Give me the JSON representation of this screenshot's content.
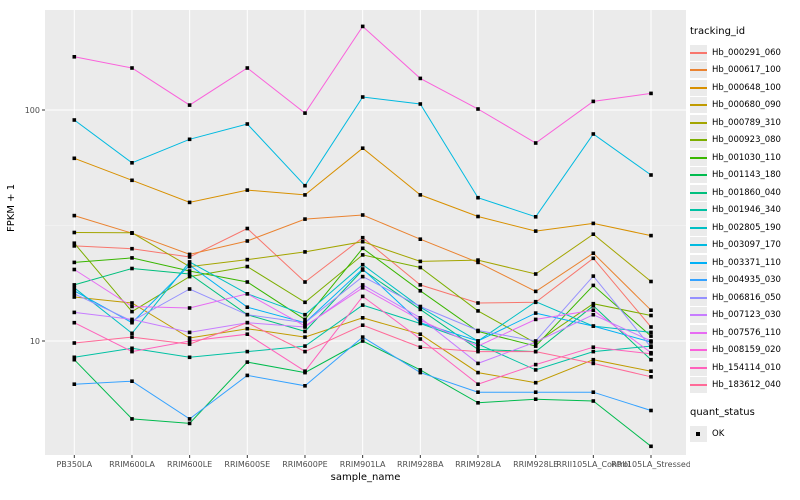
{
  "chart_data": {
    "type": "line",
    "title": "",
    "xlabel": "sample_name",
    "ylabel": "FPKM + 1",
    "y_scale": "log10",
    "y_ticks": [
      10,
      100
    ],
    "y_minor_ticks": [
      31.6
    ],
    "ylim": [
      3.2,
      280
    ],
    "grid": true,
    "legend_position": "right",
    "legend_title": "tracking_id",
    "legend2_title": "quant_status",
    "legend2_items": [
      "OK"
    ],
    "marker": "black-square",
    "x_categories": [
      "PB350LA",
      "RRIM600LA",
      "RRIM600LE",
      "RRIM600SE",
      "RRIM600PE",
      "RRIM901LA",
      "RRIM928BA",
      "RRIM928LA",
      "RRIM928LE",
      "RRII105LA_Control",
      "RRII105LA_Stressed"
    ],
    "series": [
      {
        "name": "Hb_000291_060",
        "color": "#F8766D",
        "values": [
          25.8,
          25.1,
          23.1,
          30.7,
          18.0,
          28.0,
          17.5,
          14.6,
          14.7,
          22.8,
          11.5
        ]
      },
      {
        "name": "Hb_000617_100",
        "color": "#EA8331",
        "values": [
          34.9,
          29.3,
          23.7,
          27.1,
          33.7,
          35.1,
          27.6,
          21.9,
          16.4,
          24.0,
          13.6
        ]
      },
      {
        "name": "Hb_000648_100",
        "color": "#D89000",
        "values": [
          61.8,
          49.6,
          39.8,
          45.0,
          42.9,
          68.3,
          42.9,
          34.6,
          29.9,
          32.3,
          28.6
        ]
      },
      {
        "name": "Hb_000680_090",
        "color": "#C09B00",
        "values": [
          15.5,
          14.6,
          10.3,
          11.3,
          10.4,
          12.6,
          10.7,
          7.3,
          6.6,
          8.3,
          7.4
        ]
      },
      {
        "name": "Hb_000789_310",
        "color": "#A3A500",
        "values": [
          29.5,
          29.4,
          21.0,
          22.5,
          24.3,
          26.9,
          22.1,
          22.4,
          19.5,
          29.0,
          18.1
        ]
      },
      {
        "name": "Hb_000923_080",
        "color": "#7CAE00",
        "values": [
          26.5,
          13.4,
          19.0,
          21.0,
          14.7,
          23.6,
          20.8,
          13.5,
          9.8,
          14.5,
          12.9
        ]
      },
      {
        "name": "Hb_001030_110",
        "color": "#39B600",
        "values": [
          21.9,
          22.9,
          20.1,
          18.0,
          12.4,
          25.2,
          16.5,
          11.0,
          9.5,
          17.4,
          10.5
        ]
      },
      {
        "name": "Hb_001143_180",
        "color": "#00BB4E",
        "values": [
          8.3,
          4.6,
          4.4,
          8.1,
          7.3,
          10.0,
          7.5,
          5.4,
          5.6,
          5.5,
          3.5
        ]
      },
      {
        "name": "Hb_001860_040",
        "color": "#00BF7D",
        "values": [
          17.5,
          20.6,
          19.5,
          13.0,
          11.0,
          20.3,
          13.7,
          9.2,
          9.0,
          14.2,
          8.3
        ]
      },
      {
        "name": "Hb_001946_340",
        "color": "#00C1A3",
        "values": [
          8.5,
          9.3,
          8.5,
          9.0,
          9.5,
          14.3,
          11.9,
          9.7,
          7.5,
          9.0,
          9.5
        ]
      },
      {
        "name": "Hb_002805_190",
        "color": "#00BFC4",
        "values": [
          17.0,
          10.8,
          22.0,
          16.0,
          13.0,
          21.4,
          14.0,
          10.0,
          14.8,
          11.6,
          10.9
        ]
      },
      {
        "name": "Hb_003097_170",
        "color": "#00BAE0",
        "values": [
          90.5,
          59.1,
          74.7,
          87.0,
          47.0,
          113.8,
          106.2,
          41.7,
          34.5,
          78.7,
          52.3
        ]
      },
      {
        "name": "Hb_003371_110",
        "color": "#00B0F6",
        "values": [
          16.5,
          12.0,
          21.3,
          14.0,
          12.0,
          20.5,
          12.0,
          10.0,
          13.2,
          11.6,
          9.9
        ]
      },
      {
        "name": "Hb_004935_030",
        "color": "#35A2FF",
        "values": [
          6.5,
          6.7,
          4.6,
          7.1,
          6.4,
          10.4,
          7.3,
          6.0,
          6.0,
          6.0,
          5.0
        ]
      },
      {
        "name": "Hb_006816_050",
        "color": "#9590FF",
        "values": [
          16.0,
          12.2,
          16.8,
          13.0,
          12.0,
          19.0,
          14.1,
          11.1,
          10.0,
          19.1,
          9.4
        ]
      },
      {
        "name": "Hb_007123_030",
        "color": "#C77CFF",
        "values": [
          13.3,
          12.4,
          10.9,
          12.0,
          11.5,
          17.5,
          12.6,
          8.0,
          9.9,
          13.0,
          10.0
        ]
      },
      {
        "name": "Hb_007576_110",
        "color": "#E76BF3",
        "values": [
          20.4,
          14.1,
          13.9,
          16.0,
          11.6,
          17.0,
          12.3,
          9.5,
          12.4,
          13.6,
          8.9
        ]
      },
      {
        "name": "Hb_008159_020",
        "color": "#FA62DB",
        "values": [
          170,
          152,
          105,
          152,
          97,
          230,
          137,
          101,
          72,
          109,
          118
        ]
      },
      {
        "name": "Hb_154114_010",
        "color": "#FF62BC",
        "values": [
          12.0,
          9.0,
          10.0,
          10.7,
          7.4,
          15.6,
          10.2,
          6.5,
          7.9,
          9.4,
          8.8
        ]
      },
      {
        "name": "Hb_183612_040",
        "color": "#FF6A98",
        "values": [
          9.8,
          10.4,
          9.7,
          12.0,
          9.0,
          11.7,
          9.4,
          9.0,
          9.0,
          8.0,
          7.0
        ]
      }
    ]
  },
  "colors": {
    "panel_bg": "#EBEBEB",
    "grid_major": "#FFFFFF",
    "grid_minor": "#F5F5F5",
    "axis_text": "#4D4D4D",
    "tick_mark": "#333333",
    "marker": "#000000",
    "legend_key_bg": "#EBEBEB"
  }
}
